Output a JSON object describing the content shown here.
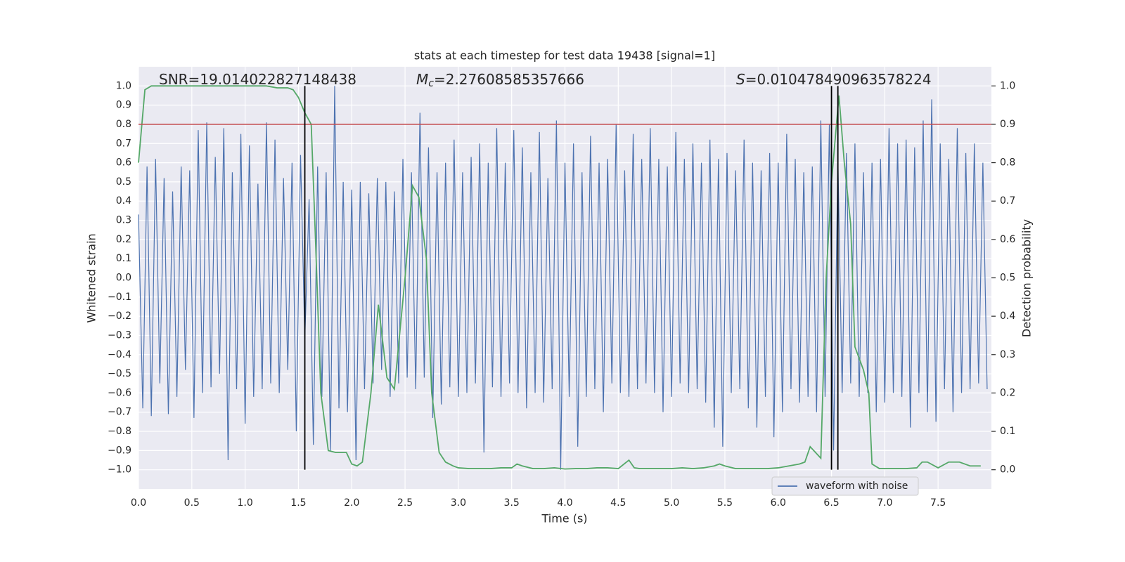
{
  "chart_data": {
    "type": "line",
    "title": "stats at each timestep for test data 19438 [signal=1]",
    "xlabel": "Time (s)",
    "ylabel": "Whitened strain",
    "y2label": "Detection probability",
    "xlim": [
      0,
      8
    ],
    "ylim": [
      -1.1,
      1.1
    ],
    "y2lim": [
      -0.05,
      1.05
    ],
    "xticks": [
      {
        "value": 0,
        "label": "0.0"
      },
      0.5,
      {
        "value": 1,
        "label": "1.0"
      },
      1.5,
      {
        "value": 2,
        "label": "2.0"
      },
      2.5,
      {
        "value": 3,
        "label": "3.0"
      },
      3.5,
      {
        "value": 4,
        "label": "4.0"
      },
      4.5,
      {
        "value": 5,
        "label": "5.0"
      },
      5.5,
      {
        "value": 6,
        "label": "6.0"
      },
      6.5,
      {
        "value": 7,
        "label": "7.0"
      },
      7.5
    ],
    "yticks": [
      {
        "value": -1,
        "label": "−1.0"
      },
      {
        "value": -0.9,
        "label": "−0.9"
      },
      {
        "value": -0.8,
        "label": "−0.8"
      },
      {
        "value": -0.7,
        "label": "−0.7"
      },
      {
        "value": -0.6,
        "label": "−0.6"
      },
      {
        "value": -0.5,
        "label": "−0.5"
      },
      {
        "value": -0.4,
        "label": "−0.4"
      },
      {
        "value": -0.3,
        "label": "−0.3"
      },
      {
        "value": -0.2,
        "label": "−0.2"
      },
      {
        "value": -0.1,
        "label": "−0.1"
      },
      {
        "value": 0,
        "label": "0.0"
      },
      0.1,
      0.2,
      0.3,
      0.4,
      0.5,
      0.6,
      0.7,
      0.8,
      0.9,
      {
        "value": 1,
        "label": "1.0"
      }
    ],
    "y2ticks": [
      {
        "value": 0,
        "label": "0.0"
      },
      0.1,
      0.2,
      0.3,
      0.4,
      0.5,
      0.6,
      0.7,
      0.8,
      0.9,
      {
        "value": 1,
        "label": "1.0"
      }
    ],
    "grid": true,
    "annotations": [
      {
        "text": "SNR=19.014022827148438"
      },
      {
        "symbol": "M",
        "subscript": "c",
        "text": "=2.27608585357666"
      },
      {
        "symbol": "S",
        "text": "=0.010478490963578224"
      }
    ],
    "threshold": {
      "value": 0.9,
      "axis": "y2",
      "color": "#c44e52"
    },
    "vlines": {
      "x": [
        1.56,
        6.5,
        6.56
      ],
      "range": [
        0,
        1
      ],
      "axis": "y2",
      "color": "#000000"
    },
    "series": [
      {
        "name": "waveform with noise",
        "color": "#4c72b0",
        "x": [
          0,
          0.04,
          0.08,
          0.12,
          0.16,
          0.2,
          0.24,
          0.28,
          0.32,
          0.36,
          0.4,
          0.44,
          0.48,
          0.52,
          0.56,
          0.6,
          0.64,
          0.68,
          0.72,
          0.76,
          0.8,
          0.84,
          0.88,
          0.92,
          0.96,
          1.0,
          1.04,
          1.08,
          1.12,
          1.16,
          1.2,
          1.24,
          1.28,
          1.32,
          1.36,
          1.4,
          1.44,
          1.48,
          1.52,
          1.56,
          1.6,
          1.64,
          1.68,
          1.72,
          1.76,
          1.8,
          1.84,
          1.88,
          1.92,
          1.96,
          2.0,
          2.04,
          2.08,
          2.12,
          2.16,
          2.2,
          2.24,
          2.28,
          2.32,
          2.36,
          2.4,
          2.44,
          2.48,
          2.52,
          2.56,
          2.6,
          2.64,
          2.68,
          2.72,
          2.76,
          2.8,
          2.84,
          2.88,
          2.92,
          2.96,
          3.0,
          3.04,
          3.08,
          3.12,
          3.16,
          3.2,
          3.24,
          3.28,
          3.32,
          3.36,
          3.4,
          3.44,
          3.48,
          3.52,
          3.56,
          3.6,
          3.64,
          3.68,
          3.72,
          3.76,
          3.8,
          3.84,
          3.88,
          3.92,
          3.96,
          4.0,
          4.04,
          4.08,
          4.12,
          4.16,
          4.2,
          4.24,
          4.28,
          4.32,
          4.36,
          4.4,
          4.44,
          4.48,
          4.52,
          4.56,
          4.6,
          4.64,
          4.68,
          4.72,
          4.76,
          4.8,
          4.84,
          4.88,
          4.92,
          4.96,
          5.0,
          5.04,
          5.08,
          5.12,
          5.16,
          5.2,
          5.24,
          5.28,
          5.32,
          5.36,
          5.4,
          5.44,
          5.48,
          5.52,
          5.56,
          5.6,
          5.64,
          5.68,
          5.72,
          5.76,
          5.8,
          5.84,
          5.88,
          5.92,
          5.96,
          6.0,
          6.04,
          6.08,
          6.12,
          6.16,
          6.2,
          6.24,
          6.28,
          6.32,
          6.36,
          6.4,
          6.44,
          6.48,
          6.52,
          6.56,
          6.6,
          6.64,
          6.68,
          6.72,
          6.76,
          6.8,
          6.84,
          6.88,
          6.92,
          6.96,
          7.0,
          7.04,
          7.08,
          7.12,
          7.16,
          7.2,
          7.24,
          7.28,
          7.32,
          7.36,
          7.4,
          7.44,
          7.48,
          7.52,
          7.56,
          7.6,
          7.64,
          7.68,
          7.72,
          7.76,
          7.8,
          7.84,
          7.88,
          7.92,
          7.96
        ],
        "values": [
          0.33,
          -0.68,
          0.58,
          -0.72,
          0.62,
          -0.55,
          0.52,
          -0.71,
          0.45,
          -0.62,
          0.58,
          -0.48,
          0.56,
          -0.73,
          0.77,
          -0.6,
          0.81,
          -0.57,
          0.63,
          -0.5,
          0.78,
          -0.95,
          0.55,
          -0.58,
          0.75,
          -0.76,
          0.69,
          -0.62,
          0.49,
          -0.58,
          0.81,
          -0.55,
          0.72,
          -0.6,
          0.52,
          -0.48,
          0.6,
          -0.8,
          0.64,
          -0.32,
          0.41,
          -0.87,
          0.58,
          -0.62,
          0.55,
          -0.9,
          1.0,
          -0.68,
          0.5,
          -0.7,
          0.46,
          -0.95,
          0.5,
          -0.58,
          0.44,
          -0.55,
          0.52,
          -0.48,
          0.5,
          -0.62,
          0.45,
          -0.55,
          0.62,
          -0.52,
          0.55,
          -0.58,
          0.86,
          -0.52,
          0.68,
          -0.73,
          0.55,
          -0.66,
          0.6,
          -0.57,
          0.72,
          -0.62,
          0.55,
          -0.6,
          0.63,
          -0.55,
          0.7,
          -0.91,
          0.6,
          -0.57,
          0.78,
          -0.62,
          0.6,
          -0.55,
          0.77,
          -0.6,
          0.68,
          -0.68,
          0.55,
          -0.6,
          0.76,
          -0.65,
          0.52,
          -0.58,
          0.82,
          -1.0,
          0.6,
          -0.62,
          0.7,
          -0.88,
          0.55,
          -0.62,
          0.74,
          -0.58,
          0.6,
          -0.7,
          0.62,
          -0.55,
          0.8,
          -0.6,
          0.56,
          -0.62,
          0.75,
          -0.58,
          0.62,
          -0.55,
          0.78,
          -0.6,
          0.62,
          -0.7,
          0.58,
          -0.62,
          0.76,
          -0.55,
          0.62,
          -0.6,
          0.7,
          -0.58,
          0.6,
          -0.65,
          0.72,
          -0.78,
          0.62,
          -0.88,
          0.65,
          -0.6,
          0.56,
          -0.58,
          0.72,
          -0.68,
          0.6,
          -0.78,
          0.56,
          -0.62,
          0.65,
          -0.83,
          0.6,
          -0.7,
          0.75,
          -0.58,
          0.62,
          -0.65,
          0.55,
          -0.62,
          0.58,
          -0.7,
          0.82,
          -0.62,
          0.8,
          -0.9,
          0.62,
          -0.6,
          0.65,
          -0.55,
          0.7,
          -0.62,
          0.55,
          -0.6,
          0.6,
          -0.7,
          0.62,
          -0.65,
          0.78,
          -0.6,
          0.7,
          -0.62,
          0.72,
          -0.78,
          0.68,
          -0.6,
          0.82,
          -0.7,
          0.93,
          -0.75,
          0.7,
          -0.58,
          0.62,
          -0.7,
          0.78,
          -0.6,
          0.65,
          -0.58,
          0.7,
          -0.55,
          0.6,
          -0.58
        ]
      },
      {
        "color": "#55a868",
        "axis": "y2",
        "x": [
          0,
          0.06,
          0.12,
          0.2,
          0.3,
          0.4,
          0.5,
          0.6,
          0.7,
          0.8,
          0.9,
          1.0,
          1.1,
          1.2,
          1.3,
          1.4,
          1.45,
          1.5,
          1.56,
          1.62,
          1.66,
          1.71,
          1.78,
          1.85,
          1.95,
          2.0,
          2.05,
          2.1,
          2.18,
          2.25,
          2.33,
          2.4,
          2.5,
          2.57,
          2.63,
          2.7,
          2.75,
          2.82,
          2.88,
          2.95,
          3.0,
          3.1,
          3.2,
          3.3,
          3.4,
          3.5,
          3.55,
          3.6,
          3.7,
          3.8,
          3.9,
          4.0,
          4.1,
          4.2,
          4.3,
          4.4,
          4.5,
          4.6,
          4.65,
          4.7,
          4.8,
          4.9,
          5.0,
          5.1,
          5.2,
          5.3,
          5.4,
          5.45,
          5.5,
          5.6,
          5.7,
          5.8,
          5.9,
          6.0,
          6.1,
          6.2,
          6.25,
          6.3,
          6.4,
          6.45,
          6.5,
          6.57,
          6.62,
          6.68,
          6.72,
          6.8,
          6.85,
          6.88,
          6.95,
          7.0,
          7.1,
          7.2,
          7.3,
          7.35,
          7.4,
          7.5,
          7.6,
          7.7,
          7.8,
          7.9
        ],
        "values": [
          0.8,
          0.99,
          1.0,
          1.0,
          1.0,
          1.0,
          1.0,
          1.0,
          1.0,
          1.0,
          1.0,
          1.0,
          1.0,
          1.0,
          0.995,
          0.995,
          0.99,
          0.97,
          0.93,
          0.9,
          0.6,
          0.2,
          0.05,
          0.045,
          0.045,
          0.015,
          0.01,
          0.02,
          0.2,
          0.43,
          0.24,
          0.21,
          0.5,
          0.74,
          0.71,
          0.55,
          0.2,
          0.045,
          0.02,
          0.01,
          0.005,
          0.003,
          0.003,
          0.003,
          0.005,
          0.005,
          0.015,
          0.01,
          0.003,
          0.003,
          0.005,
          0.002,
          0.003,
          0.003,
          0.005,
          0.005,
          0.003,
          0.025,
          0.005,
          0.003,
          0.003,
          0.003,
          0.003,
          0.005,
          0.003,
          0.005,
          0.01,
          0.015,
          0.01,
          0.003,
          0.003,
          0.003,
          0.003,
          0.005,
          0.01,
          0.015,
          0.02,
          0.06,
          0.03,
          0.5,
          0.75,
          0.975,
          0.8,
          0.64,
          0.32,
          0.26,
          0.2,
          0.015,
          0.003,
          0.003,
          0.003,
          0.003,
          0.005,
          0.02,
          0.02,
          0.005,
          0.02,
          0.02,
          0.01,
          0.01
        ]
      }
    ]
  }
}
